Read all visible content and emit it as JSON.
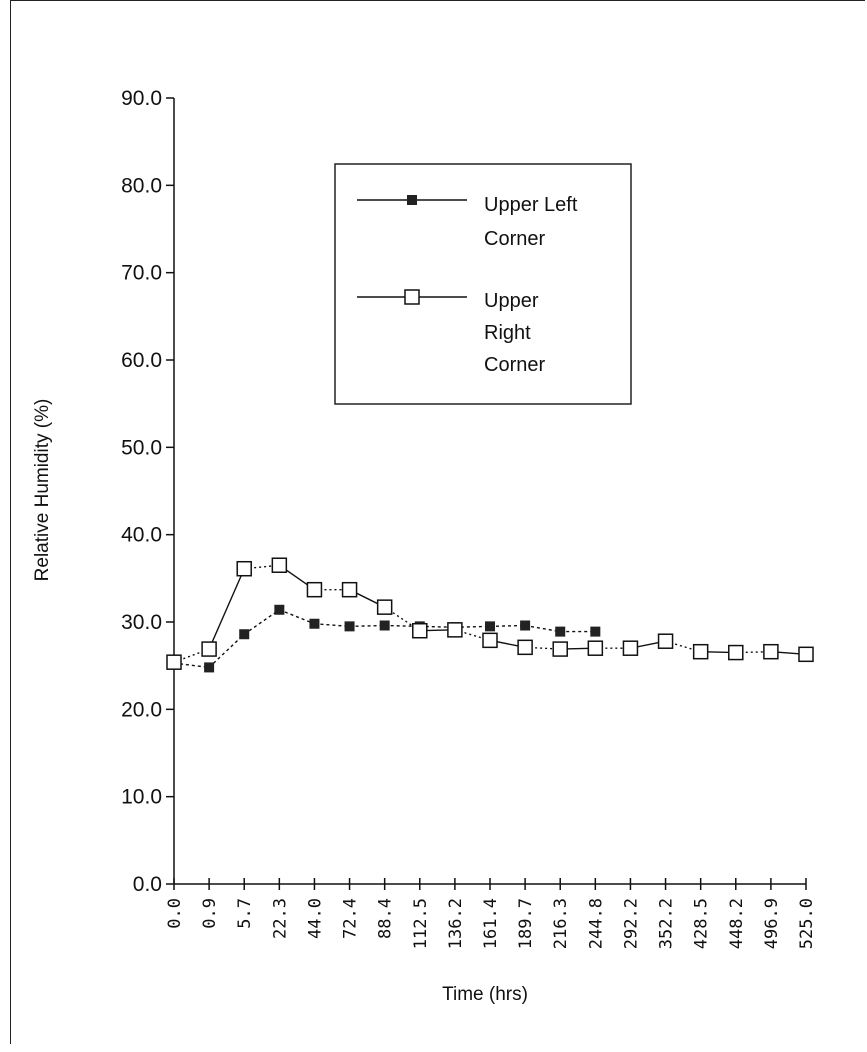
{
  "chart_data": {
    "type": "line",
    "xlabel": "Time (hrs)",
    "ylabel": "Relative Humidity (%)",
    "ylim": [
      0,
      90
    ],
    "yticks": [
      "0.0",
      "10.0",
      "20.0",
      "30.0",
      "40.0",
      "50.0",
      "60.0",
      "70.0",
      "80.0",
      "90.0"
    ],
    "categories": [
      "0.0",
      "0.9",
      "5.7",
      "22.3",
      "44.0",
      "72.4",
      "88.4",
      "112.5",
      "136.2",
      "161.4",
      "189.7",
      "216.3",
      "244.8",
      "292.2",
      "352.2",
      "428.5",
      "448.2",
      "496.9",
      "525.0"
    ],
    "legend_position": "top-right",
    "grid": false,
    "series": [
      {
        "name": "Upper Left Corner",
        "marker": "filled-square",
        "values": [
          25.3,
          24.8,
          28.6,
          31.4,
          29.8,
          29.5,
          29.6,
          29.5,
          29.4,
          29.5,
          29.6,
          28.9,
          28.9,
          null,
          null,
          null,
          null,
          null,
          null
        ]
      },
      {
        "name": "Upper Right Corner",
        "marker": "open-square",
        "values": [
          25.4,
          26.9,
          36.1,
          36.5,
          33.7,
          33.7,
          31.7,
          29.0,
          29.1,
          27.9,
          27.1,
          26.9,
          27.0,
          27.0,
          27.8,
          26.6,
          26.5,
          26.6,
          26.3
        ]
      }
    ],
    "legend": {
      "series0_lines": [
        "Upper Left",
        "Corner"
      ],
      "series1_lines": [
        "Upper",
        "Right",
        "Corner"
      ]
    }
  }
}
